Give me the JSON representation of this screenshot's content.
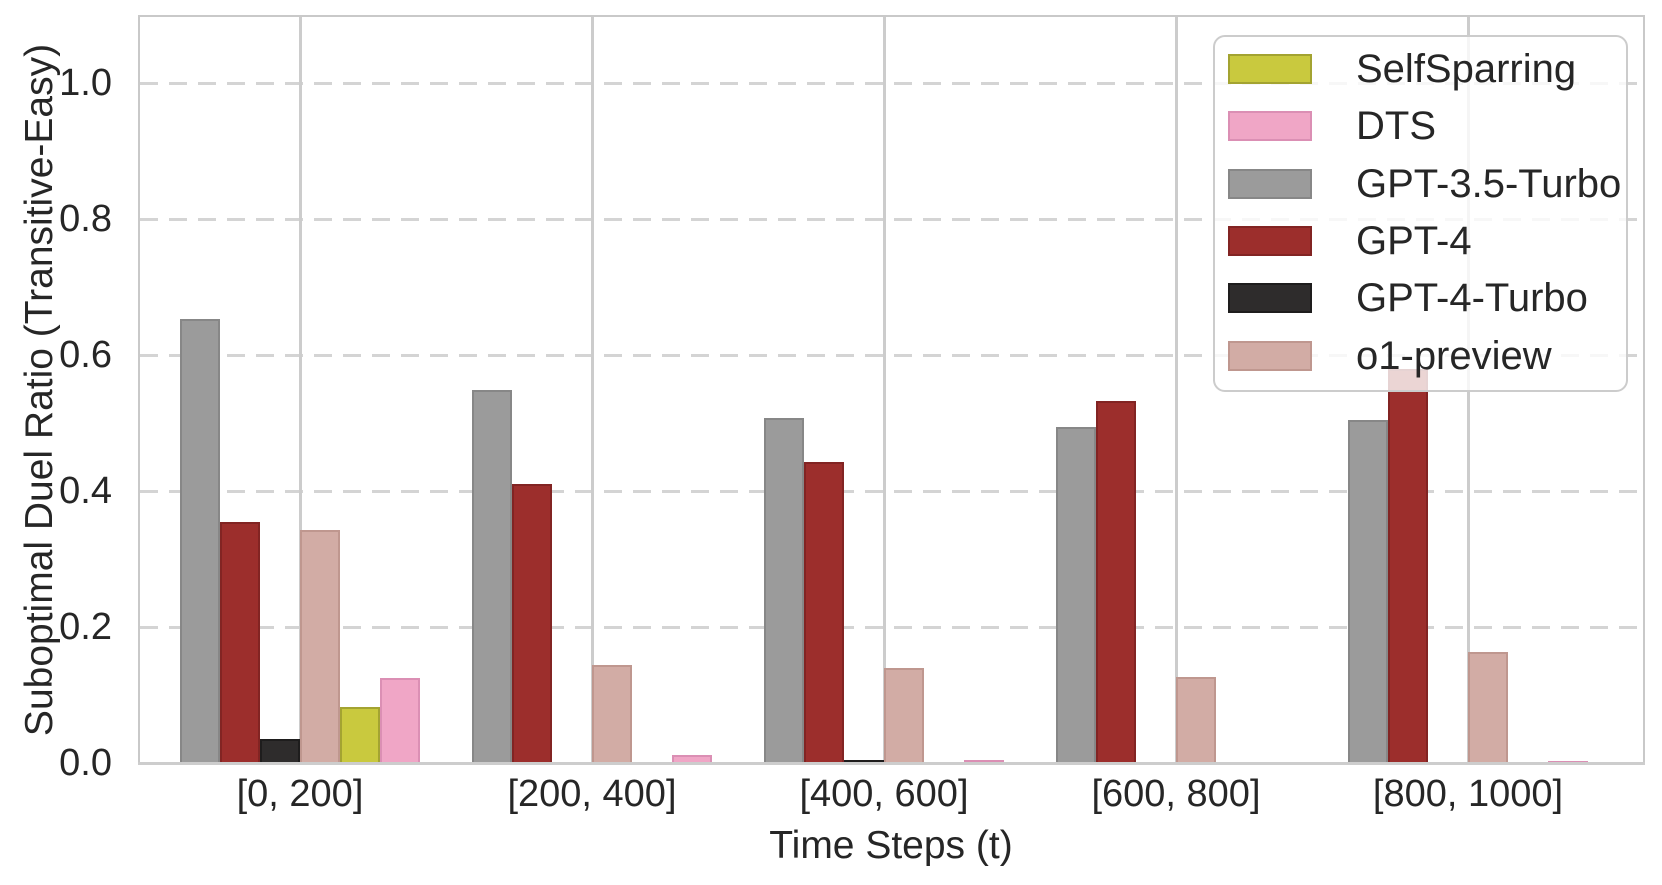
{
  "chart_data": {
    "type": "bar",
    "title": "",
    "xlabel": "Time Steps (t)",
    "ylabel": "Suboptimal Duel Ratio (Transitive-Easy)",
    "categories": [
      "[0, 200]",
      "[200, 400]",
      "[400, 600]",
      "[600, 800]",
      "[800, 1000]"
    ],
    "series": [
      {
        "name": "SelfSparring",
        "color": "#c9c93e",
        "edge": "#a3a331",
        "values": [
          0.082,
          0,
          0,
          0,
          0
        ]
      },
      {
        "name": "DTS",
        "color": "#f0a6c6",
        "edge": "#db8fb4",
        "values": [
          0.125,
          0.012,
          0.004,
          0,
          0.003
        ]
      },
      {
        "name": "GPT-3.5-Turbo",
        "color": "#9b9b9b",
        "edge": "#878787",
        "values": [
          0.653,
          0.548,
          0.507,
          0.494,
          0.504
        ]
      },
      {
        "name": "GPT-4",
        "color": "#9c2e2c",
        "edge": "#822423",
        "values": [
          0.355,
          0.411,
          0.443,
          0.533,
          0.58
        ]
      },
      {
        "name": "GPT-4-Turbo",
        "color": "#2e2c2c",
        "edge": "#1e1d1d",
        "values": [
          0.035,
          0,
          0.005,
          0,
          0
        ]
      },
      {
        "name": "o1-preview",
        "color": "#d2aca5",
        "edge": "#bf978f",
        "values": [
          0.343,
          0.144,
          0.139,
          0.126,
          0.163
        ]
      }
    ],
    "bar_order": [
      "GPT-3.5-Turbo",
      "GPT-4",
      "GPT-4-Turbo",
      "o1-preview",
      "SelfSparring",
      "DTS"
    ],
    "ytick_labels": [
      "0.0",
      "0.2",
      "0.4",
      "0.6",
      "0.8",
      "1.0"
    ],
    "yticks": [
      0.0,
      0.2,
      0.4,
      0.6,
      0.8,
      1.0
    ],
    "ylim": [
      0,
      1.096
    ],
    "grid": {
      "horizontal": "dashed",
      "vertical": "solid"
    },
    "legend_position": "upper right"
  }
}
